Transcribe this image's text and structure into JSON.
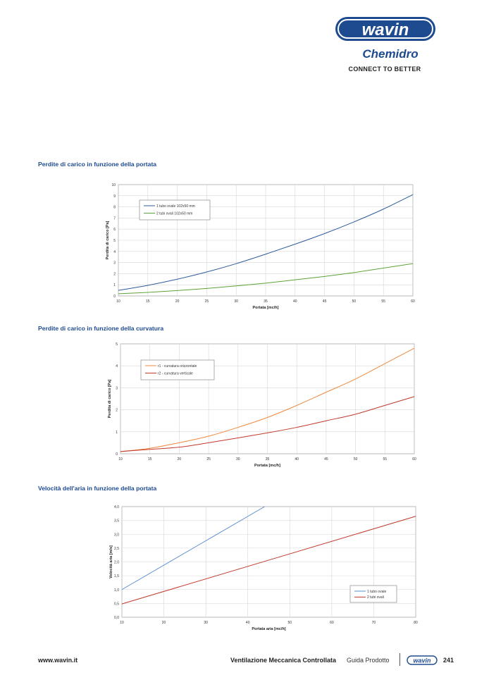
{
  "header": {
    "brand": "wavin",
    "sub_brand": "Chemidro",
    "tagline": "CONNECT TO BETTER"
  },
  "colors": {
    "brand_blue": "#1e4b8f",
    "series_blue": "#2e5b9a",
    "series_green": "#5da33a",
    "series_orange": "#f0883e",
    "series_red": "#c0392b",
    "series_lightblue": "#5b8fd0"
  },
  "sections": [
    {
      "title": "Perdite di carico in funzione della portata"
    },
    {
      "title": "Perdite di carico in funzione della curvatura"
    },
    {
      "title": "Velocità dell'aria in funzione della portata"
    }
  ],
  "chart_data": [
    {
      "type": "line",
      "title": "Perdite di carico in funzione della portata",
      "xlabel": "Portata [mc/h]",
      "ylabel": "Perdita di carico [Pa]",
      "xlim": [
        10,
        60
      ],
      "ylim": [
        0,
        10
      ],
      "xticks": [
        "10",
        "15",
        "20",
        "25",
        "30",
        "35",
        "40",
        "45",
        "50",
        "55",
        "60"
      ],
      "yticks": [
        "0",
        "1",
        "2",
        "3",
        "4",
        "5",
        "6",
        "7",
        "8",
        "9",
        "10"
      ],
      "grid": true,
      "legend": "top-left",
      "x": [
        10,
        15,
        20,
        25,
        30,
        35,
        40,
        45,
        50,
        55,
        60
      ],
      "series": [
        {
          "name": "1 tubo ovale 102x50 mm",
          "color": "#2e5b9a",
          "values": [
            0.5,
            0.95,
            1.5,
            2.15,
            2.9,
            3.75,
            4.65,
            5.6,
            6.65,
            7.8,
            9.1
          ]
        },
        {
          "name": "2 tubi ovali 102x50 mm",
          "color": "#5da33a",
          "values": [
            0.2,
            0.32,
            0.48,
            0.67,
            0.9,
            1.15,
            1.45,
            1.75,
            2.1,
            2.5,
            2.9
          ]
        }
      ]
    },
    {
      "type": "line",
      "title": "Perdite di carico in funzione della curvatura",
      "xlabel": "Portata [mc/h]",
      "ylabel": "Perdita di carico [Pa]",
      "xlim": [
        10,
        60
      ],
      "ylim": [
        0,
        5
      ],
      "xticks": [
        "10",
        "15",
        "20",
        "25",
        "30",
        "35",
        "40",
        "45",
        "50",
        "55",
        "60"
      ],
      "yticks": [
        "0",
        "1",
        "2",
        "3",
        "4",
        "5"
      ],
      "grid": true,
      "legend": "top-left",
      "x": [
        10,
        15,
        20,
        25,
        30,
        35,
        40,
        45,
        50,
        55,
        60
      ],
      "series": [
        {
          "name": "r1 - curvatura orizzontale",
          "color": "#f0883e",
          "values": [
            0.1,
            0.25,
            0.5,
            0.8,
            1.2,
            1.65,
            2.2,
            2.8,
            3.4,
            4.1,
            4.8
          ]
        },
        {
          "name": "r2 - curvatura verticale",
          "color": "#c0392b",
          "values": [
            0.1,
            0.2,
            0.3,
            0.5,
            0.72,
            0.95,
            1.2,
            1.5,
            1.8,
            2.2,
            2.6
          ]
        }
      ]
    },
    {
      "type": "line",
      "title": "Velocità dell'aria in funzione della portata",
      "xlabel": "Portata aria [mc/h]",
      "ylabel": "Velocità aria [m/s]",
      "xlim": [
        10,
        80
      ],
      "ylim": [
        0,
        4
      ],
      "xticks": [
        "10",
        "20",
        "30",
        "40",
        "50",
        "60",
        "70",
        "80"
      ],
      "yticks": [
        "0,0",
        "0,5",
        "1,0",
        "1,5",
        "2,0",
        "2,5",
        "3,0",
        "3,5",
        "4,0"
      ],
      "grid": true,
      "legend": "bottom-right",
      "x": [
        10,
        20,
        30,
        40,
        44,
        50,
        60,
        70,
        80
      ],
      "series": [
        {
          "name": "1 tubo ovale",
          "color": "#5b8fd0",
          "x": [
            10,
            44
          ],
          "values": [
            1.0,
            4.0
          ]
        },
        {
          "name": "2 tubi ovali",
          "color": "#c0392b",
          "x": [
            10,
            80
          ],
          "values": [
            0.48,
            3.65
          ]
        }
      ]
    }
  ],
  "footer": {
    "url": "www.wavin.it",
    "title": "Ventilazione Meccanica Controllata",
    "subtitle": "Guida Prodotto",
    "page": "241"
  }
}
